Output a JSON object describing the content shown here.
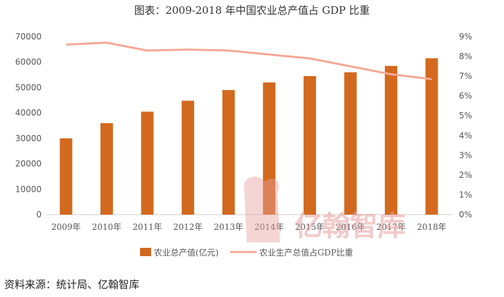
{
  "title": "图表：2009-2018 年中国农业总产值占 GDP 比重",
  "source": "资料来源：统计局、亿翰智库",
  "watermark": "亿翰智库",
  "colors": {
    "bar": "#d2691e",
    "line": "#f4a896",
    "axis": "#cccccc"
  },
  "chart_data": {
    "type": "bar+line",
    "title": "图表：2009-2018 年中国农业总产值占 GDP 比重",
    "categories": [
      "2009年",
      "2010年",
      "2011年",
      "2012年",
      "2013年",
      "2014年",
      "2015年",
      "2016年",
      "2017年",
      "2018年"
    ],
    "series": [
      {
        "name": "农业总产值(亿元)",
        "type": "bar",
        "axis": "left",
        "values": [
          30000,
          36000,
          40500,
          44800,
          49000,
          52000,
          54500,
          56000,
          58500,
          61500
        ]
      },
      {
        "name": "农业生产总值占GDP比重",
        "type": "line",
        "axis": "right",
        "values": [
          8.6,
          8.7,
          8.3,
          8.35,
          8.3,
          8.1,
          7.9,
          7.5,
          7.1,
          6.85
        ]
      }
    ],
    "y_left": {
      "min": 0,
      "max": 70000,
      "step": 10000,
      "tick_labels": [
        "0",
        "10000",
        "20000",
        "30000",
        "40000",
        "50000",
        "60000",
        "70000"
      ]
    },
    "y_right": {
      "min": 0,
      "max": 9,
      "step": 1,
      "tick_labels": [
        "0%",
        "1%",
        "2%",
        "3%",
        "4%",
        "5%",
        "6%",
        "7%",
        "8%",
        "9%"
      ]
    },
    "legend": [
      "农业总产值(亿元)",
      "农业生产总值占GDP比重"
    ],
    "legend_position": "bottom"
  }
}
